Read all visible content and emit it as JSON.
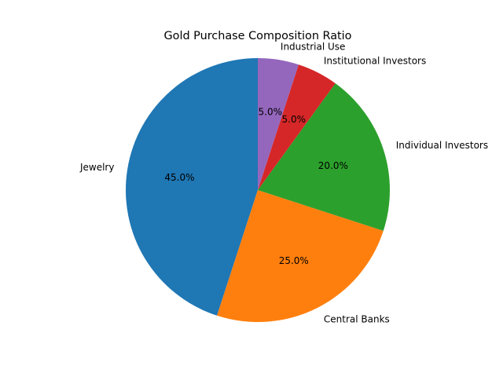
{
  "chart_data": {
    "type": "pie",
    "title": "Gold Purchase Composition Ratio",
    "start_angle_deg": 90,
    "direction": "counterclockwise",
    "slices": [
      {
        "label": "Jewelry",
        "value": 45,
        "pct_label": "45.0%",
        "color": "#1f77b4"
      },
      {
        "label": "Central Banks",
        "value": 25,
        "pct_label": "25.0%",
        "color": "#ff7f0e"
      },
      {
        "label": "Individual Investors",
        "value": 20,
        "pct_label": "20.0%",
        "color": "#2ca02c"
      },
      {
        "label": "Institutional Investors",
        "value": 5,
        "pct_label": "5.0%",
        "color": "#d62728"
      },
      {
        "label": "Industrial Use",
        "value": 5,
        "pct_label": "5.0%",
        "color": "#9467bd"
      }
    ]
  }
}
